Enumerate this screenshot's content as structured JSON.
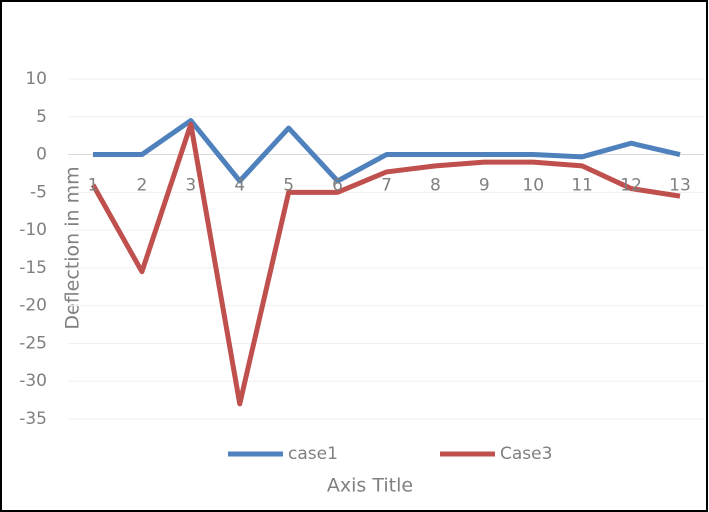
{
  "chart_data": {
    "type": "line",
    "x_label": "Axis Title",
    "y_label": "Deflection in mm",
    "categories": [
      "1",
      "2",
      "3",
      "4",
      "5",
      "6",
      "7",
      "8",
      "9",
      "10",
      "11",
      "12",
      "13"
    ],
    "series": [
      {
        "name": "case1",
        "color": "#4f81bd",
        "values": [
          0,
          0,
          4.5,
          -3.5,
          3.5,
          -3.5,
          0,
          0,
          0,
          0,
          -0.3,
          1.5,
          0
        ]
      },
      {
        "name": "Case3",
        "color": "#c0504d",
        "values": [
          -4,
          -15.5,
          4,
          -33,
          -5,
          -5,
          -2.3,
          -1.5,
          -1,
          -1,
          -1.5,
          -4.5,
          -5.5
        ]
      }
    ],
    "ylim": [
      -35,
      10
    ],
    "yticks": [
      10,
      5,
      0,
      -5,
      -10,
      -15,
      -20,
      -25,
      -30,
      -35
    ],
    "grid": true,
    "legend": "bottom"
  }
}
